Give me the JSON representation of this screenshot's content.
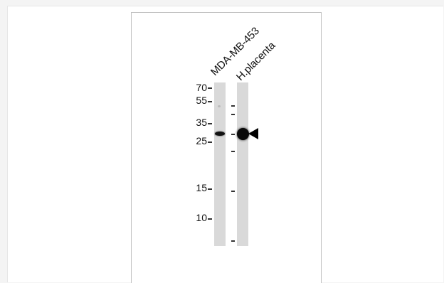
{
  "lanes": [
    {
      "label": "MDA-MB-453"
    },
    {
      "label": "H.placenta"
    }
  ],
  "markers": [
    "70",
    "55",
    "35",
    "25",
    "15",
    "10"
  ]
}
